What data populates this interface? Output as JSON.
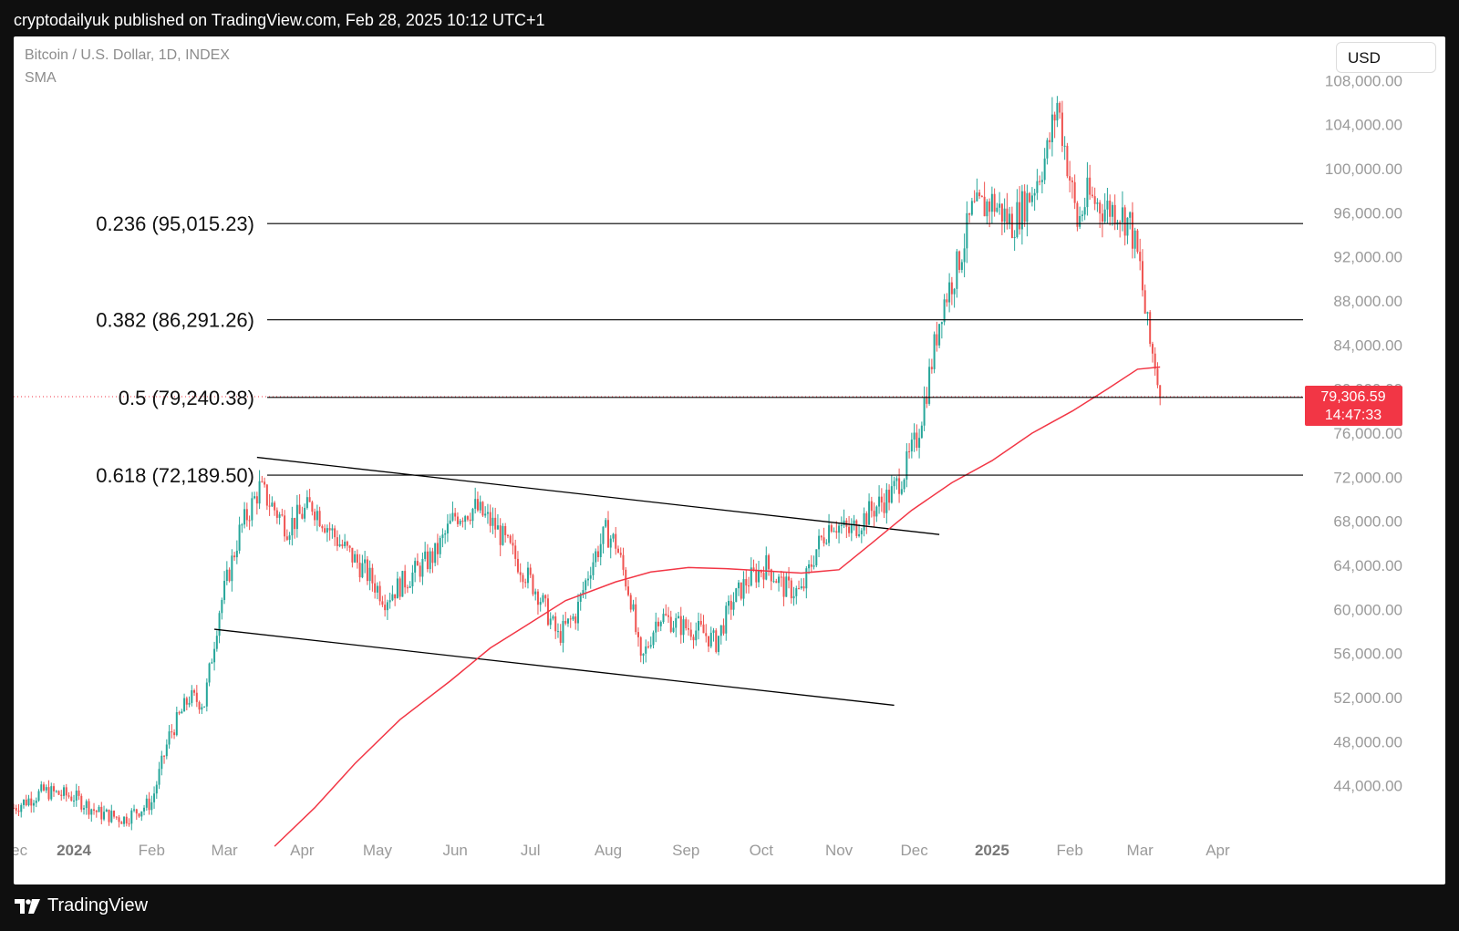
{
  "header": {
    "published": "cryptodailyuk published on TradingView.com, Feb 28, 2025 10:12 UTC+1"
  },
  "currency": "USD",
  "footer": {
    "brand": "TradingView"
  },
  "colors": {
    "up": "#26a69a",
    "down": "#ef5350",
    "sma": "#f23645",
    "line": "#000000",
    "axis_text": "#9a9a9a"
  },
  "chart_data": {
    "type": "candlestick",
    "title": "Bitcoin / U.S. Dollar, 1D, INDEX",
    "indicator": "SMA",
    "ylim": [
      40000,
      112000
    ],
    "x_range_days": [
      -24,
      490
    ],
    "y_ticks": [
      {
        "value": 44000,
        "label": "44,000.00"
      },
      {
        "value": 48000,
        "label": "48,000.00"
      },
      {
        "value": 52000,
        "label": "52,000.00"
      },
      {
        "value": 56000,
        "label": "56,000.00"
      },
      {
        "value": 60000,
        "label": "60,000.00"
      },
      {
        "value": 64000,
        "label": "64,000.00"
      },
      {
        "value": 68000,
        "label": "68,000.00"
      },
      {
        "value": 72000,
        "label": "72,000.00"
      },
      {
        "value": 76000,
        "label": "76,000.00"
      },
      {
        "value": 80000,
        "label": "80,000.00"
      },
      {
        "value": 84000,
        "label": "84,000.00"
      },
      {
        "value": 88000,
        "label": "88,000.00"
      },
      {
        "value": 92000,
        "label": "92,000.00"
      },
      {
        "value": 96000,
        "label": "96,000.00"
      },
      {
        "value": 100000,
        "label": "100,000.00"
      },
      {
        "value": 104000,
        "label": "104,000.00"
      },
      {
        "value": 108000,
        "label": "108,000.00"
      }
    ],
    "x_ticks": [
      {
        "day": -24,
        "label": "Dec",
        "bold": false
      },
      {
        "day": 0,
        "label": "2024",
        "bold": true
      },
      {
        "day": 31,
        "label": "Feb",
        "bold": false
      },
      {
        "day": 60,
        "label": "Mar",
        "bold": false
      },
      {
        "day": 91,
        "label": "Apr",
        "bold": false
      },
      {
        "day": 121,
        "label": "May",
        "bold": false
      },
      {
        "day": 152,
        "label": "Jun",
        "bold": false
      },
      {
        "day": 182,
        "label": "Jul",
        "bold": false
      },
      {
        "day": 213,
        "label": "Aug",
        "bold": false
      },
      {
        "day": 244,
        "label": "Sep",
        "bold": false
      },
      {
        "day": 274,
        "label": "Oct",
        "bold": false
      },
      {
        "day": 305,
        "label": "Nov",
        "bold": false
      },
      {
        "day": 335,
        "label": "Dec",
        "bold": false
      },
      {
        "day": 366,
        "label": "2025",
        "bold": true
      },
      {
        "day": 397,
        "label": "Feb",
        "bold": false
      },
      {
        "day": 425,
        "label": "Mar",
        "bold": false
      },
      {
        "day": 456,
        "label": "Apr",
        "bold": false
      }
    ],
    "fib_levels": [
      {
        "ratio": "0.236",
        "label": "0.236 (95,015.23)",
        "value": 95015.23
      },
      {
        "ratio": "0.382",
        "label": "0.382 (86,291.26)",
        "value": 86291.26
      },
      {
        "ratio": "0.5",
        "label": "0.5 (79,240.38)",
        "value": 79240.38
      },
      {
        "ratio": "0.618",
        "label": "0.618 (72,189.50)",
        "value": 72189.5
      }
    ],
    "current_price": {
      "value": 79306.59,
      "label": "79,306.59",
      "countdown": "14:47:33"
    },
    "channel_lines": [
      {
        "name": "upper",
        "from": {
          "day": 73,
          "price": 73800
        },
        "to": {
          "day": 345,
          "price": 66800
        }
      },
      {
        "name": "lower",
        "from": {
          "day": 56,
          "price": 58200
        },
        "to": {
          "day": 327,
          "price": 51300
        }
      }
    ],
    "price_path": [
      [
        -24,
        42000
      ],
      [
        -12,
        43500
      ],
      [
        0,
        43000
      ],
      [
        10,
        41500
      ],
      [
        20,
        41000
      ],
      [
        31,
        42500
      ],
      [
        38,
        48500
      ],
      [
        46,
        52000
      ],
      [
        52,
        51500
      ],
      [
        58,
        60000
      ],
      [
        66,
        67000
      ],
      [
        74,
        71000
      ],
      [
        85,
        67500
      ],
      [
        95,
        69500
      ],
      [
        106,
        66000
      ],
      [
        116,
        63500
      ],
      [
        124,
        61000
      ],
      [
        134,
        63000
      ],
      [
        144,
        65000
      ],
      [
        152,
        68500
      ],
      [
        160,
        69200
      ],
      [
        168,
        67500
      ],
      [
        175,
        65000
      ],
      [
        185,
        61500
      ],
      [
        193,
        57500
      ],
      [
        200,
        59500
      ],
      [
        206,
        64000
      ],
      [
        212,
        67000
      ],
      [
        216,
        66000
      ],
      [
        222,
        61000
      ],
      [
        226,
        55000
      ],
      [
        233,
        59500
      ],
      [
        242,
        58500
      ],
      [
        250,
        58000
      ],
      [
        256,
        57000
      ],
      [
        262,
        60500
      ],
      [
        268,
        62500
      ],
      [
        276,
        64000
      ],
      [
        283,
        62000
      ],
      [
        290,
        61500
      ],
      [
        296,
        65500
      ],
      [
        302,
        68000
      ],
      [
        309,
        67000
      ],
      [
        318,
        69000
      ],
      [
        326,
        70500
      ],
      [
        331,
        72500
      ],
      [
        336,
        75500
      ],
      [
        340,
        80000
      ],
      [
        346,
        87500
      ],
      [
        352,
        91000
      ],
      [
        358,
        96000
      ],
      [
        366,
        97000
      ],
      [
        374,
        95000
      ],
      [
        382,
        98000
      ],
      [
        388,
        101500
      ],
      [
        392,
        106000
      ],
      [
        395,
        102000
      ],
      [
        400,
        95000
      ],
      [
        404,
        97500
      ],
      [
        410,
        96500
      ],
      [
        416,
        96300
      ],
      [
        421,
        95000
      ],
      [
        423,
        93000
      ],
      [
        425,
        91000
      ],
      [
        427,
        87000
      ],
      [
        429,
        84000
      ],
      [
        431,
        82500
      ],
      [
        433,
        79300
      ]
    ],
    "sma_path": [
      [
        80,
        38500
      ],
      [
        96,
        42000
      ],
      [
        112,
        46000
      ],
      [
        130,
        50000
      ],
      [
        150,
        53500
      ],
      [
        166,
        56500
      ],
      [
        180,
        58500
      ],
      [
        196,
        60800
      ],
      [
        216,
        62500
      ],
      [
        230,
        63400
      ],
      [
        245,
        63800
      ],
      [
        260,
        63700
      ],
      [
        275,
        63500
      ],
      [
        290,
        63300
      ],
      [
        305,
        63600
      ],
      [
        318,
        66000
      ],
      [
        334,
        69000
      ],
      [
        350,
        71500
      ],
      [
        366,
        73500
      ],
      [
        382,
        76000
      ],
      [
        398,
        78000
      ],
      [
        412,
        80000
      ],
      [
        424,
        81800
      ],
      [
        433,
        82000
      ]
    ]
  }
}
